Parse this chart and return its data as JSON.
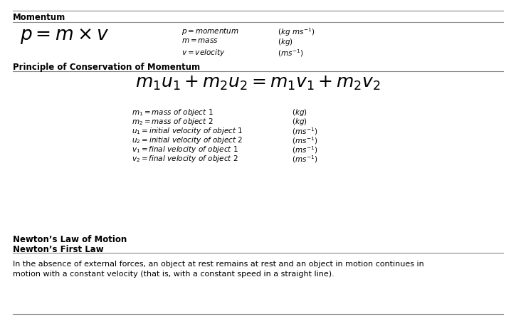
{
  "page_bg": "#ffffff",
  "section1_heading": "Momentum",
  "section2_heading": "Principle of Conservation of Momentum",
  "section3_heading1": "Newton’s Law of Motion",
  "section3_heading2": "Newton’s First Law",
  "section3_text1": "In the absence of external forces, an object at rest remains at rest and an object in motion continues in",
  "section3_text2": "motion with a constant velocity (that is, with a constant speed in a straight line).",
  "line_color": "#888888",
  "lw": 0.8
}
